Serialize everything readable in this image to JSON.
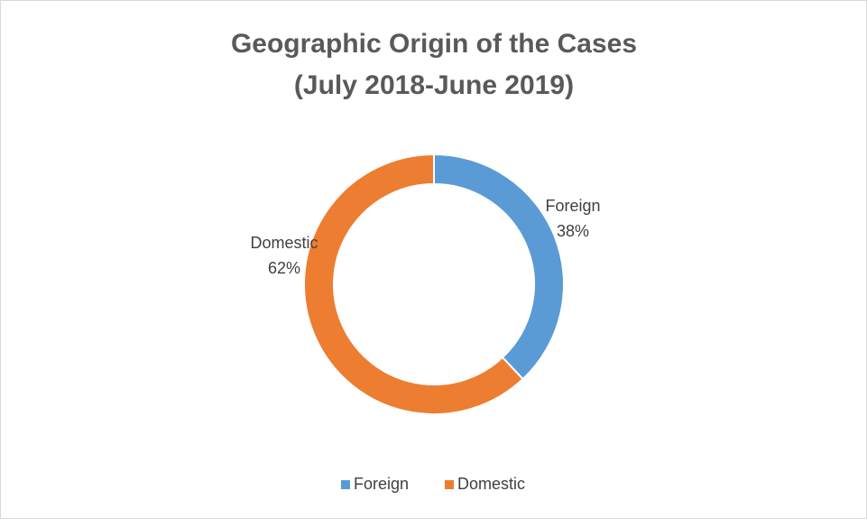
{
  "chart_data": {
    "type": "donut",
    "title": "Geographic Origin of the Cases",
    "subtitle": "(July 2018-June 2019)",
    "categories": [
      "Foreign",
      "Domestic"
    ],
    "values": [
      38,
      62
    ],
    "value_labels": [
      "38%",
      "62%"
    ],
    "colors": [
      "#5b9bd5",
      "#ed7d31"
    ],
    "legend": "bottom"
  }
}
